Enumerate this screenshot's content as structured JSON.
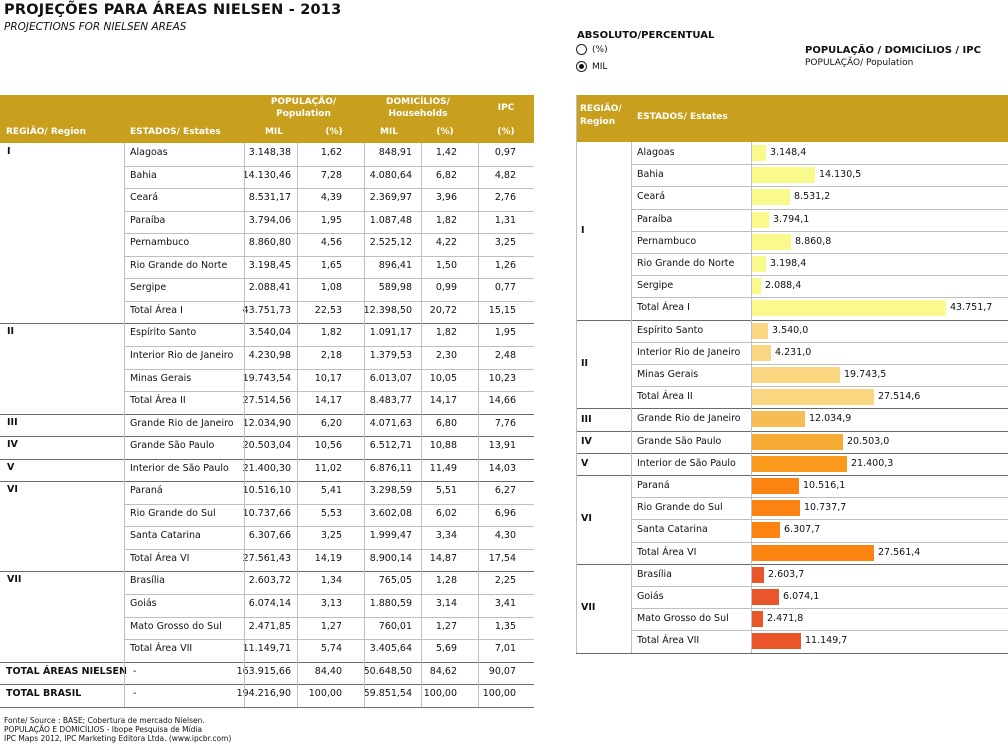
{
  "header": {
    "title": "PROJEÇÕES PARA ÁREAS NIELSEN - 2013",
    "subtitle": "PROJECTIONS FOR NIELSEN AREAS"
  },
  "toggle": {
    "heading": "ABSOLUTO/PERCENTUAL",
    "options": [
      {
        "label": "(%)",
        "selected": false
      },
      {
        "label": "MIL",
        "selected": true
      }
    ]
  },
  "right_panel": {
    "title": "POPULAÇÃO / DOMICÍLIOS / IPC",
    "subtitle": "POPULAÇÃO/ Population"
  },
  "left_table": {
    "headers": {
      "region": "REGIÃO/ Region",
      "states": "ESTADOS/ Estates",
      "pop": "POPULAÇÃO/\nPopulation",
      "dom": "DOMICÍLIOS/\nHouseholds",
      "ipc": "IPC",
      "mil": "MIL",
      "pct": "(%)"
    },
    "groups": [
      {
        "region": "I",
        "rows": [
          {
            "state": "Alagoas",
            "pop_mil": "3.148,38",
            "pop_pct": "1,62",
            "dom_mil": "848,91",
            "dom_pct": "1,42",
            "ipc": "0,97"
          },
          {
            "state": "Bahia",
            "pop_mil": "14.130,46",
            "pop_pct": "7,28",
            "dom_mil": "4.080,64",
            "dom_pct": "6,82",
            "ipc": "4,82"
          },
          {
            "state": "Ceará",
            "pop_mil": "8.531,17",
            "pop_pct": "4,39",
            "dom_mil": "2.369,97",
            "dom_pct": "3,96",
            "ipc": "2,76"
          },
          {
            "state": "Paraíba",
            "pop_mil": "3.794,06",
            "pop_pct": "1,95",
            "dom_mil": "1.087,48",
            "dom_pct": "1,82",
            "ipc": "1,31"
          },
          {
            "state": "Pernambuco",
            "pop_mil": "8.860,80",
            "pop_pct": "4,56",
            "dom_mil": "2.525,12",
            "dom_pct": "4,22",
            "ipc": "3,25"
          },
          {
            "state": "Rio Grande do Norte",
            "pop_mil": "3.198,45",
            "pop_pct": "1,65",
            "dom_mil": "896,41",
            "dom_pct": "1,50",
            "ipc": "1,26"
          },
          {
            "state": "Sergipe",
            "pop_mil": "2.088,41",
            "pop_pct": "1,08",
            "dom_mil": "589,98",
            "dom_pct": "0,99",
            "ipc": "0,77"
          },
          {
            "state": "Total Área I",
            "pop_mil": "43.751,73",
            "pop_pct": "22,53",
            "dom_mil": "12.398,50",
            "dom_pct": "20,72",
            "ipc": "15,15"
          }
        ]
      },
      {
        "region": "II",
        "rows": [
          {
            "state": "Espírito Santo",
            "pop_mil": "3.540,04",
            "pop_pct": "1,82",
            "dom_mil": "1.091,17",
            "dom_pct": "1,82",
            "ipc": "1,95"
          },
          {
            "state": "Interior Rio de Janeiro",
            "pop_mil": "4.230,98",
            "pop_pct": "2,18",
            "dom_mil": "1.379,53",
            "dom_pct": "2,30",
            "ipc": "2,48"
          },
          {
            "state": "Minas Gerais",
            "pop_mil": "19.743,54",
            "pop_pct": "10,17",
            "dom_mil": "6.013,07",
            "dom_pct": "10,05",
            "ipc": "10,23"
          },
          {
            "state": "Total Área II",
            "pop_mil": "27.514,56",
            "pop_pct": "14,17",
            "dom_mil": "8.483,77",
            "dom_pct": "14,17",
            "ipc": "14,66"
          }
        ]
      },
      {
        "region": "III",
        "rows": [
          {
            "state": "Grande Rio de Janeiro",
            "pop_mil": "12.034,90",
            "pop_pct": "6,20",
            "dom_mil": "4.071,63",
            "dom_pct": "6,80",
            "ipc": "7,76"
          }
        ]
      },
      {
        "region": "IV",
        "rows": [
          {
            "state": "Grande São Paulo",
            "pop_mil": "20.503,04",
            "pop_pct": "10,56",
            "dom_mil": "6.512,71",
            "dom_pct": "10,88",
            "ipc": "13,91"
          }
        ]
      },
      {
        "region": "V",
        "rows": [
          {
            "state": "Interior de São Paulo",
            "pop_mil": "21.400,30",
            "pop_pct": "11,02",
            "dom_mil": "6.876,11",
            "dom_pct": "11,49",
            "ipc": "14,03"
          }
        ]
      },
      {
        "region": "VI",
        "rows": [
          {
            "state": "Paraná",
            "pop_mil": "10.516,10",
            "pop_pct": "5,41",
            "dom_mil": "3.298,59",
            "dom_pct": "5,51",
            "ipc": "6,27"
          },
          {
            "state": "Rio Grande do Sul",
            "pop_mil": "10.737,66",
            "pop_pct": "5,53",
            "dom_mil": "3.602,08",
            "dom_pct": "6,02",
            "ipc": "6,96"
          },
          {
            "state": "Santa Catarina",
            "pop_mil": "6.307,66",
            "pop_pct": "3,25",
            "dom_mil": "1.999,47",
            "dom_pct": "3,34",
            "ipc": "4,30"
          },
          {
            "state": "Total Área  VI",
            "pop_mil": "27.561,43",
            "pop_pct": "14,19",
            "dom_mil": "8.900,14",
            "dom_pct": "14,87",
            "ipc": "17,54"
          }
        ]
      },
      {
        "region": "VII",
        "rows": [
          {
            "state": "Brasília",
            "pop_mil": "2.603,72",
            "pop_pct": "1,34",
            "dom_mil": "765,05",
            "dom_pct": "1,28",
            "ipc": "2,25"
          },
          {
            "state": "Goiás",
            "pop_mil": "6.074,14",
            "pop_pct": "3,13",
            "dom_mil": "1.880,59",
            "dom_pct": "3,14",
            "ipc": "3,41"
          },
          {
            "state": "Mato Grosso do Sul",
            "pop_mil": "2.471,85",
            "pop_pct": "1,27",
            "dom_mil": "760,01",
            "dom_pct": "1,27",
            "ipc": "1,35"
          },
          {
            "state": "Total Área  VII",
            "pop_mil": "11.149,71",
            "pop_pct": "5,74",
            "dom_mil": "3.405,64",
            "dom_pct": "5,69",
            "ipc": "7,01"
          }
        ]
      }
    ],
    "totals": [
      {
        "label": "TOTAL ÁREAS NIELSEN",
        "state": "-",
        "pop_mil": "163.915,66",
        "pop_pct": "84,40",
        "dom_mil": "50.648,50",
        "dom_pct": "84,62",
        "ipc": "90,07"
      },
      {
        "label": "TOTAL BRASIL",
        "state": "-",
        "pop_mil": "194.216,90",
        "pop_pct": "100,00",
        "dom_mil": "59.851,54",
        "dom_pct": "100,00",
        "ipc": "100,00"
      }
    ]
  },
  "right_table": {
    "headers": {
      "region": "REGIÃO/\nRegion",
      "states": "ESTADOS/ Estates"
    }
  },
  "chart_data": {
    "type": "bar",
    "orientation": "horizontal",
    "title": "POPULAÇÃO / DOMICÍLIOS / IPC",
    "subtitle": "POPULAÇÃO/ Population",
    "groups": [
      {
        "region": "I",
        "color": "#fafa8c",
        "items": [
          {
            "label": "Alagoas",
            "value": 3148.4,
            "text": "3.148,4"
          },
          {
            "label": "Bahia",
            "value": 14130.5,
            "text": "14.130,5"
          },
          {
            "label": "Ceará",
            "value": 8531.2,
            "text": "8.531,2"
          },
          {
            "label": "Paraíba",
            "value": 3794.1,
            "text": "3.794,1"
          },
          {
            "label": "Pernambuco",
            "value": 8860.8,
            "text": "8.860,8"
          },
          {
            "label": "Rio Grande do Norte",
            "value": 3198.4,
            "text": "3.198,4"
          },
          {
            "label": "Sergipe",
            "value": 2088.4,
            "text": "2.088,4"
          },
          {
            "label": "Total Área I",
            "value": 43751.7,
            "text": "43.751,7"
          }
        ]
      },
      {
        "region": "II",
        "color": "#fbd680",
        "items": [
          {
            "label": "Espírito Santo",
            "value": 3540.0,
            "text": "3.540,0"
          },
          {
            "label": "Interior Rio de Janeiro",
            "value": 4231.0,
            "text": "4.231,0"
          },
          {
            "label": "Minas Gerais",
            "value": 19743.5,
            "text": "19.743,5"
          },
          {
            "label": "Total Área II",
            "value": 27514.6,
            "text": "27.514,6"
          }
        ]
      },
      {
        "region": "III",
        "color": "#f7bc52",
        "items": [
          {
            "label": "Grande Rio de Janeiro",
            "value": 12034.9,
            "text": "12.034,9"
          }
        ]
      },
      {
        "region": "IV",
        "color": "#f7ab35",
        "items": [
          {
            "label": "Grande São Paulo",
            "value": 20503.0,
            "text": "20.503,0"
          }
        ]
      },
      {
        "region": "V",
        "color": "#f99a1c",
        "items": [
          {
            "label": "Interior de São Paulo",
            "value": 21400.3,
            "text": "21.400,3"
          }
        ]
      },
      {
        "region": "VI",
        "color": "#fa8311",
        "items": [
          {
            "label": "Paraná",
            "value": 10516.1,
            "text": "10.516,1"
          },
          {
            "label": "Rio Grande do Sul",
            "value": 10737.7,
            "text": "10.737,7"
          },
          {
            "label": "Santa Catarina",
            "value": 6307.7,
            "text": "6.307,7"
          },
          {
            "label": "Total Área  VI",
            "value": 27561.4,
            "text": "27.561,4"
          }
        ]
      },
      {
        "region": "VII",
        "color": "#e8562a",
        "items": [
          {
            "label": "Brasília",
            "value": 2603.7,
            "text": "2.603,7"
          },
          {
            "label": "Goiás",
            "value": 6074.1,
            "text": "6.074,1"
          },
          {
            "label": "Mato Grosso do Sul",
            "value": 2471.8,
            "text": "2.471,8"
          },
          {
            "label": "Total Área  VII",
            "value": 11149.7,
            "text": "11.149,7"
          }
        ]
      }
    ],
    "xlim": [
      0,
      43751.7
    ],
    "grid": false,
    "legend": "none"
  },
  "footer": {
    "lines": [
      "Fonte/ Source : BASE; Cobertura de mercado Nielsen.",
      "POPULAÇÃO E DOMICÍLIOS - Ibope Pesquisa de Mídia",
      "IPC Maps 2012, IPC Marketing Editora Ltda. (www.ipcbr.com)"
    ]
  },
  "colors": {
    "header_gold": "#c99f1e",
    "grid_line": "#bfbfbf",
    "group_line": "#6b6b6b"
  }
}
